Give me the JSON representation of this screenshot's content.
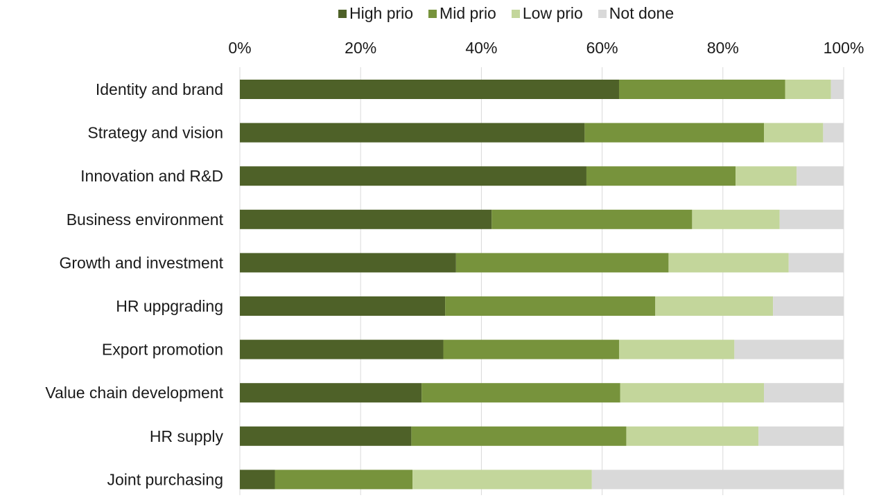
{
  "chart_data": {
    "type": "bar",
    "orientation": "horizontal",
    "stacked": "percent",
    "categories": [
      "Identity and brand",
      "Strategy and vision",
      "Innovation and R&D",
      "Business environment",
      "Growth and investment",
      "HR uppgrading",
      "Export promotion",
      "Value chain development",
      "HR supply",
      "Joint purchasing"
    ],
    "series": [
      {
        "name": "High prio",
        "color": "#4e6128",
        "values": [
          62.8,
          57.1,
          57.4,
          41.7,
          35.8,
          34.0,
          33.7,
          30.1,
          28.4,
          5.8
        ]
      },
      {
        "name": "Mid prio",
        "color": "#77933c",
        "values": [
          27.5,
          29.7,
          24.7,
          33.2,
          35.2,
          34.8,
          29.1,
          32.9,
          35.6,
          22.8
        ]
      },
      {
        "name": "Low prio",
        "color": "#c3d69b",
        "values": [
          7.6,
          9.8,
          10.1,
          14.5,
          19.9,
          19.5,
          19.1,
          23.8,
          21.9,
          29.7
        ]
      },
      {
        "name": "Not done",
        "color": "#d9d9d9",
        "values": [
          2.1,
          3.4,
          7.8,
          10.6,
          9.1,
          11.7,
          18.1,
          13.2,
          14.1,
          41.7
        ]
      }
    ],
    "x_ticks": [
      "0%",
      "20%",
      "40%",
      "60%",
      "80%",
      "100%"
    ],
    "xlim": [
      0,
      100
    ],
    "grid": "vertical",
    "legend_position": "top"
  }
}
